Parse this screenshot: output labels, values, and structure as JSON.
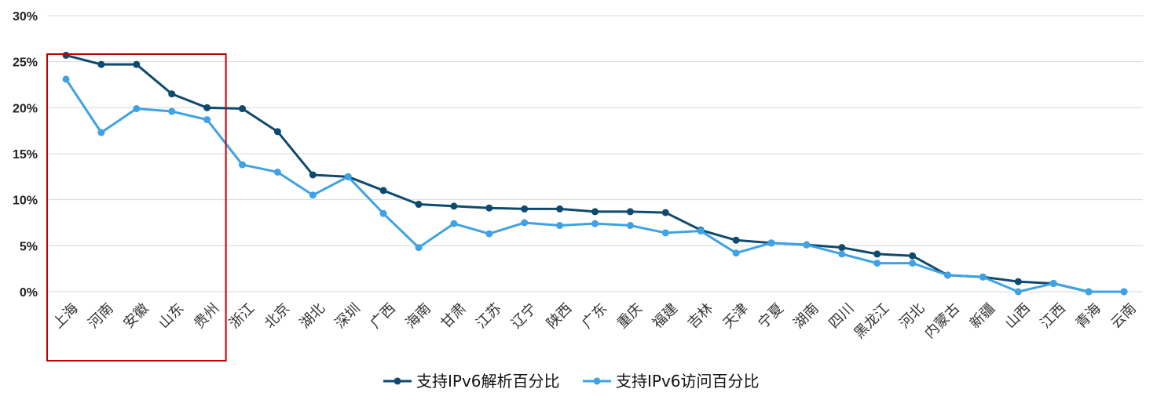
{
  "chart_data": {
    "type": "line",
    "categories": [
      "上海",
      "河南",
      "安徽",
      "山东",
      "贵州",
      "浙江",
      "北京",
      "湖北",
      "深圳",
      "广西",
      "海南",
      "甘肃",
      "江苏",
      "辽宁",
      "陕西",
      "广东",
      "重庆",
      "福建",
      "吉林",
      "天津",
      "宁夏",
      "湖南",
      "四川",
      "黑龙江",
      "河北",
      "内蒙古",
      "新疆",
      "山西",
      "江西",
      "青海",
      "云南"
    ],
    "series": [
      {
        "name": "支持IPv6解析百分比",
        "color": "#0d4a6e",
        "values": [
          25.7,
          24.7,
          24.7,
          21.5,
          20.0,
          19.9,
          17.4,
          12.7,
          12.5,
          11.0,
          9.5,
          9.3,
          9.1,
          9.0,
          9.0,
          8.7,
          8.7,
          8.6,
          6.7,
          5.6,
          5.3,
          5.1,
          4.8,
          4.1,
          3.9,
          1.8,
          1.6,
          1.1,
          0.9,
          0.0,
          0.0
        ]
      },
      {
        "name": "支持IPv6访问百分比",
        "color": "#3fa2e4",
        "values": [
          23.1,
          17.3,
          19.9,
          19.6,
          18.7,
          13.8,
          13.0,
          10.5,
          12.5,
          8.5,
          4.8,
          7.4,
          6.3,
          7.5,
          7.2,
          7.4,
          7.2,
          6.4,
          6.6,
          4.2,
          5.3,
          5.1,
          4.1,
          3.1,
          3.1,
          1.8,
          1.6,
          0.0,
          0.9,
          0.0,
          0.0
        ]
      }
    ],
    "yticks": [
      "0%",
      "5%",
      "10%",
      "15%",
      "20%",
      "25%",
      "30%"
    ],
    "ylim": [
      0,
      30
    ],
    "grid": true,
    "legend_position": "bottom-center",
    "highlight": {
      "from": "上海",
      "to": "贵州",
      "color": "#c00000"
    }
  }
}
